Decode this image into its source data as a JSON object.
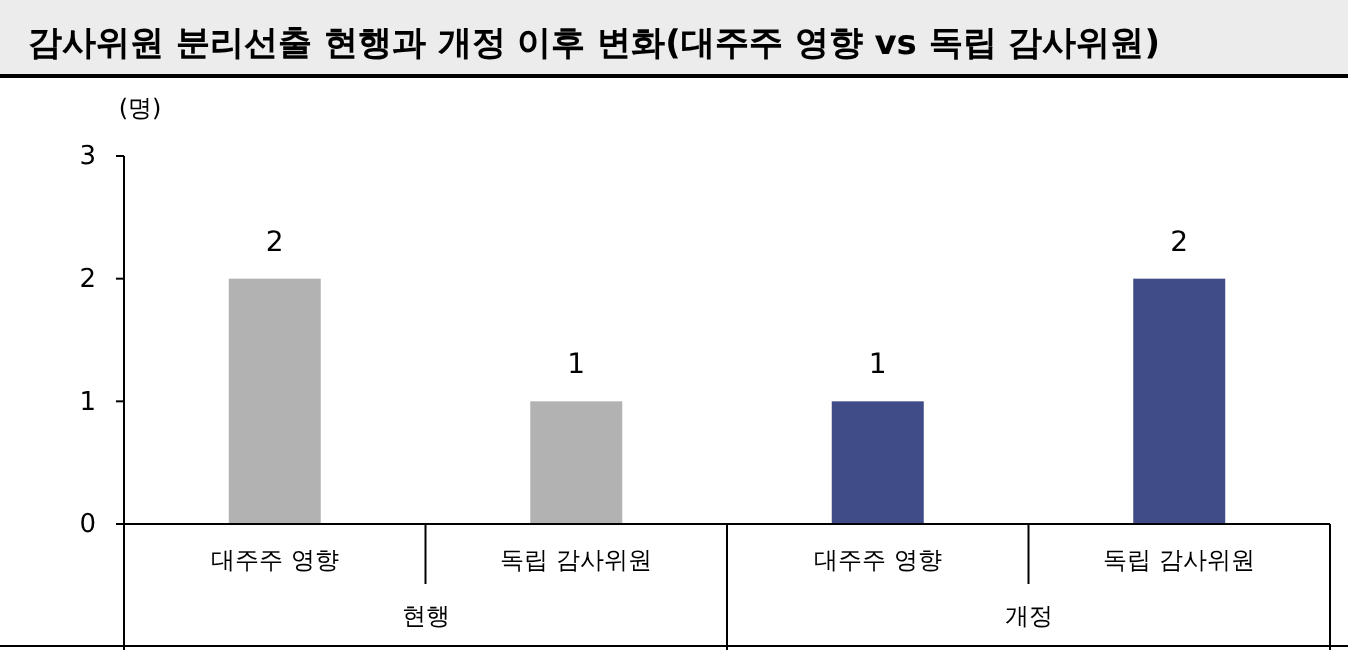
{
  "chart_data": {
    "type": "bar",
    "title": "감사위원 분리선출 현행과 개정 이후 변화(대주주 영향 vs 독립 감사위원)",
    "ylabel": "(명)",
    "categories": [
      "대주주 영향",
      "독립 감사위원",
      "대주주 영향",
      "독립 감사위원"
    ],
    "values": [
      2,
      1,
      1,
      2
    ],
    "colors": [
      "#b2b2b2",
      "#b2b2b2",
      "#3f4c87",
      "#3f4c87"
    ],
    "ylim": [
      0,
      3
    ],
    "yticks": [
      0,
      1,
      2,
      3
    ],
    "grid": false,
    "data_labels": true,
    "annotations": [
      "현행",
      "개정"
    ]
  }
}
